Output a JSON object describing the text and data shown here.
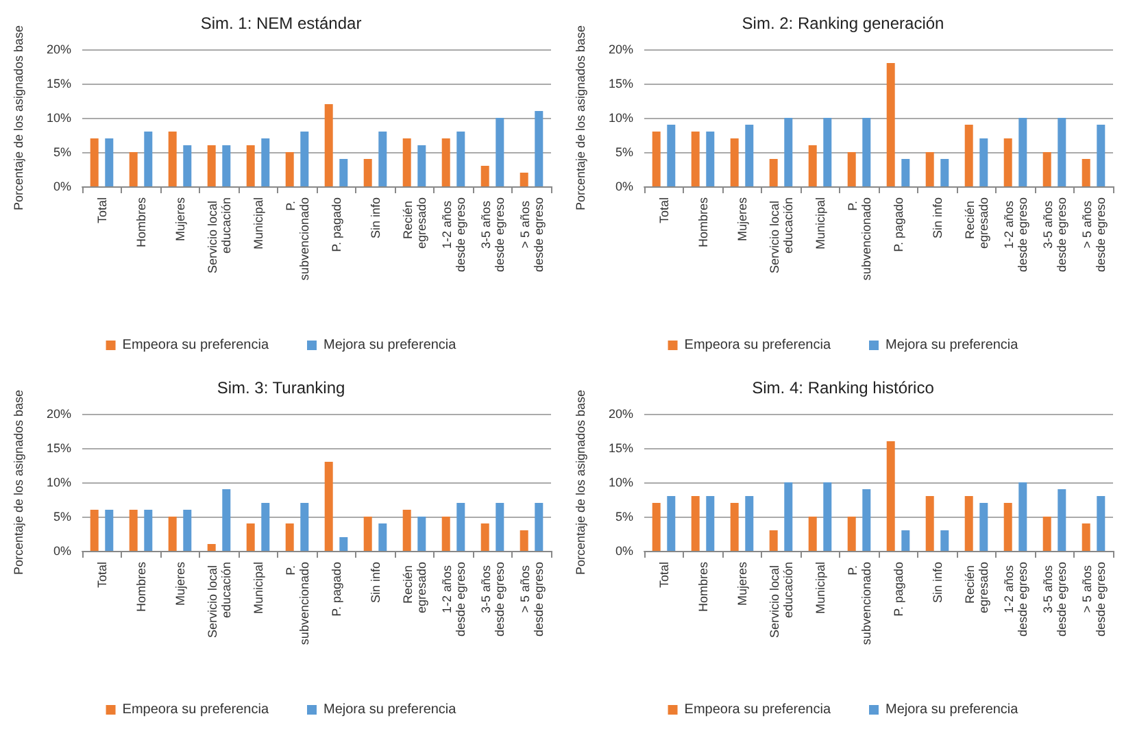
{
  "chart_data": [
    {
      "type": "bar",
      "title": "Sim. 1: NEM estándar",
      "ylabel": "Porcentaje de los asignados base",
      "categories": [
        "Total",
        "Hombres",
        "Mujeres",
        "Servicio local educación",
        "Municipal",
        "P. subvencionado",
        "P. pagado",
        "Sin info",
        "Recién egresado",
        "1-2 años desde egreso",
        "3-5 años desde egreso",
        "> 5 años desde egreso"
      ],
      "series": [
        {
          "name": "Empeora su preferencia",
          "color": "#ed7d31",
          "values": [
            7,
            5,
            8,
            6,
            6,
            5,
            12,
            4,
            7,
            7,
            3,
            2
          ]
        },
        {
          "name": "Mejora su preferencia",
          "color": "#5b9bd5",
          "values": [
            7,
            8,
            6,
            6,
            7,
            8,
            4,
            8,
            6,
            8,
            10,
            11
          ]
        }
      ],
      "ylim": [
        0,
        20
      ],
      "yticks": [
        {
          "value": 0,
          "label": "0%"
        },
        {
          "value": 5,
          "label": "5%"
        },
        {
          "value": 10,
          "label": "10%"
        },
        {
          "value": 15,
          "label": "15%"
        },
        {
          "value": 20,
          "label": "20%"
        }
      ],
      "grid": "y",
      "legend": "bottom"
    },
    {
      "type": "bar",
      "title": "Sim. 2: Ranking generación",
      "ylabel": "Porcentaje de los asignados base",
      "categories": [
        "Total",
        "Hombres",
        "Mujeres",
        "Servicio local educación",
        "Municipal",
        "P. subvencionado",
        "P. pagado",
        "Sin info",
        "Recién egresado",
        "1-2 años desde egreso",
        "3-5 años desde egreso",
        "> 5 años desde egreso"
      ],
      "series": [
        {
          "name": "Empeora su preferencia",
          "color": "#ed7d31",
          "values": [
            8,
            8,
            7,
            4,
            6,
            5,
            18,
            5,
            9,
            7,
            5,
            4
          ]
        },
        {
          "name": "Mejora su preferencia",
          "color": "#5b9bd5",
          "values": [
            9,
            8,
            9,
            10,
            10,
            10,
            4,
            4,
            7,
            10,
            10,
            9
          ]
        }
      ],
      "ylim": [
        0,
        20
      ],
      "yticks": [
        {
          "value": 0,
          "label": "0%"
        },
        {
          "value": 5,
          "label": "5%"
        },
        {
          "value": 10,
          "label": "10%"
        },
        {
          "value": 15,
          "label": "15%"
        },
        {
          "value": 20,
          "label": "20%"
        }
      ],
      "grid": "y",
      "legend": "bottom"
    },
    {
      "type": "bar",
      "title": "Sim. 3: Turanking",
      "ylabel": "Porcentaje de los asignados base",
      "categories": [
        "Total",
        "Hombres",
        "Mujeres",
        "Servicio local educación",
        "Municipal",
        "P. subvencionado",
        "P. pagado",
        "Sin info",
        "Recién egresado",
        "1-2 años desde egreso",
        "3-5 años desde egreso",
        "> 5 años desde egreso"
      ],
      "series": [
        {
          "name": "Empeora su preferencia",
          "color": "#ed7d31",
          "values": [
            6,
            6,
            5,
            1,
            4,
            4,
            13,
            5,
            6,
            5,
            4,
            3
          ]
        },
        {
          "name": "Mejora su preferencia",
          "color": "#5b9bd5",
          "values": [
            6,
            6,
            6,
            9,
            7,
            7,
            2,
            4,
            5,
            7,
            7,
            7
          ]
        }
      ],
      "ylim": [
        0,
        20
      ],
      "yticks": [
        {
          "value": 0,
          "label": "0%"
        },
        {
          "value": 5,
          "label": "5%"
        },
        {
          "value": 10,
          "label": "10%"
        },
        {
          "value": 15,
          "label": "15%"
        },
        {
          "value": 20,
          "label": "20%"
        }
      ],
      "grid": "y",
      "legend": "bottom"
    },
    {
      "type": "bar",
      "title": "Sim. 4: Ranking histórico",
      "ylabel": "Porcentaje de los asignados base",
      "categories": [
        "Total",
        "Hombres",
        "Mujeres",
        "Servicio local educación",
        "Municipal",
        "P. subvencionado",
        "P. pagado",
        "Sin info",
        "Recién egresado",
        "1-2 años desde egreso",
        "3-5 años desde egreso",
        "> 5 años desde egreso"
      ],
      "series": [
        {
          "name": "Empeora su preferencia",
          "color": "#ed7d31",
          "values": [
            7,
            8,
            7,
            3,
            5,
            5,
            16,
            8,
            8,
            7,
            5,
            4
          ]
        },
        {
          "name": "Mejora su preferencia",
          "color": "#5b9bd5",
          "values": [
            8,
            8,
            8,
            10,
            10,
            9,
            3,
            3,
            7,
            10,
            9,
            8
          ]
        }
      ],
      "ylim": [
        0,
        20
      ],
      "yticks": [
        {
          "value": 0,
          "label": "0%"
        },
        {
          "value": 5,
          "label": "5%"
        },
        {
          "value": 10,
          "label": "10%"
        },
        {
          "value": 15,
          "label": "15%"
        },
        {
          "value": 20,
          "label": "20%"
        }
      ],
      "grid": "y",
      "legend": "bottom"
    }
  ]
}
